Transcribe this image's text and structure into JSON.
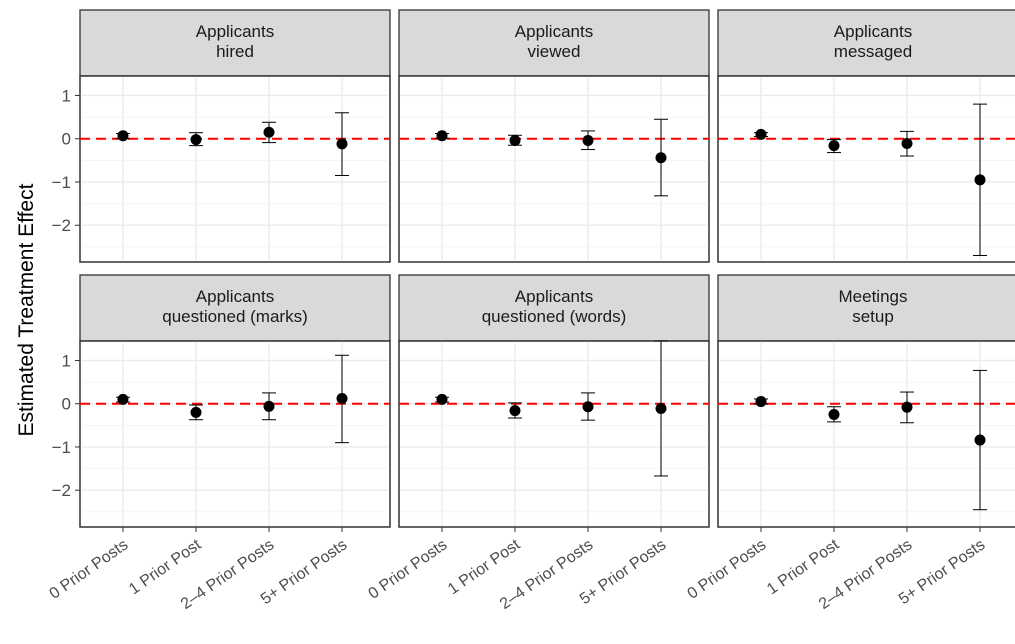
{
  "chart_data": {
    "type": "scatter",
    "ylabel": "Estimated Treatment Effect",
    "xlabel": "",
    "categories": [
      "0 Prior Posts",
      "1 Prior Post",
      "2–4 Prior Posts",
      "5+ Prior Posts"
    ],
    "ylim": [
      -2.85,
      1.45
    ],
    "yticks": [
      1,
      0,
      -1,
      -2
    ],
    "ytick_labels": [
      "1",
      "0",
      "−1",
      "−2"
    ],
    "reference_line": {
      "y": 0,
      "color": "#ff0000",
      "style": "dashed"
    },
    "grid": true,
    "panels": [
      {
        "title": [
          "Applicants",
          "hired"
        ],
        "estimates": [
          0.07,
          -0.02,
          0.15,
          -0.12
        ],
        "lower": [
          0.0,
          -0.16,
          -0.09,
          -0.85
        ],
        "upper": [
          0.12,
          0.14,
          0.38,
          0.6
        ]
      },
      {
        "title": [
          "Applicants",
          "viewed"
        ],
        "estimates": [
          0.07,
          -0.04,
          -0.04,
          -0.44
        ],
        "lower": [
          0.01,
          -0.15,
          -0.25,
          -1.32
        ],
        "upper": [
          0.12,
          0.08,
          0.18,
          0.45
        ]
      },
      {
        "title": [
          "Applicants",
          "messaged"
        ],
        "estimates": [
          0.1,
          -0.16,
          -0.11,
          -0.95
        ],
        "lower": [
          0.05,
          -0.32,
          -0.4,
          -2.7
        ],
        "upper": [
          0.14,
          -0.02,
          0.17,
          0.8
        ]
      },
      {
        "title": [
          "Applicants",
          "questioned (marks)"
        ],
        "estimates": [
          0.1,
          -0.2,
          -0.06,
          0.12
        ],
        "lower": [
          0.04,
          -0.37,
          -0.37,
          -0.9
        ],
        "upper": [
          0.15,
          -0.03,
          0.25,
          1.12
        ]
      },
      {
        "title": [
          "Applicants",
          "questioned (words)"
        ],
        "estimates": [
          0.1,
          -0.16,
          -0.07,
          -0.11
        ],
        "lower": [
          0.04,
          -0.33,
          -0.38,
          -1.67
        ],
        "upper": [
          0.15,
          0.02,
          0.25,
          1.45
        ]
      },
      {
        "title": [
          "Meetings",
          "setup"
        ],
        "estimates": [
          0.05,
          -0.25,
          -0.08,
          -0.84
        ],
        "lower": [
          -0.01,
          -0.42,
          -0.44,
          -2.45
        ],
        "upper": [
          0.11,
          -0.07,
          0.27,
          0.77
        ]
      }
    ]
  }
}
